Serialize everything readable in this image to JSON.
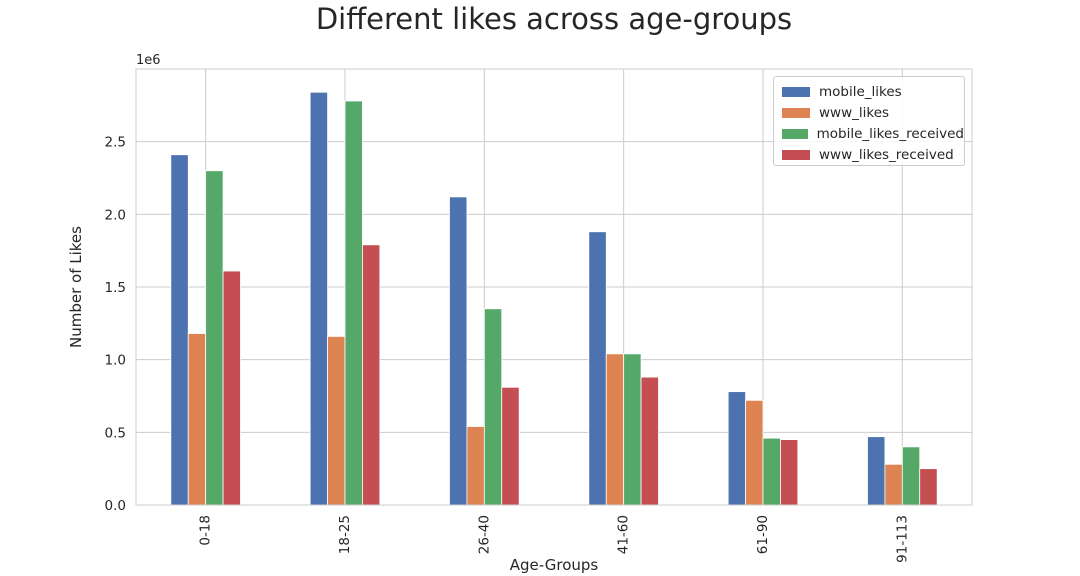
{
  "chart_data": {
    "type": "bar",
    "title": "Different likes across age-groups",
    "xlabel": "Age-Groups",
    "ylabel": "Number of Likes",
    "y_offset_text": "1e6",
    "categories": [
      "0-18",
      "18-25",
      "26-40",
      "41-60",
      "61-90",
      "91-113"
    ],
    "yticks": [
      0.0,
      0.5,
      1.0,
      1.5,
      2.0,
      2.5
    ],
    "ytick_labels": [
      "0.0",
      "0.5",
      "1.0",
      "1.5",
      "2.0",
      "2.5"
    ],
    "ylim": [
      0,
      3.0
    ],
    "units_multiplier": 1000000,
    "grid": true,
    "legend_position": "top-right",
    "series": [
      {
        "name": "mobile_likes",
        "color": "#4c72b0",
        "values": [
          2.41,
          2.84,
          2.12,
          1.88,
          0.78,
          0.47
        ]
      },
      {
        "name": "www_likes",
        "color": "#dd8452",
        "values": [
          1.18,
          1.16,
          0.54,
          1.04,
          0.72,
          0.28
        ]
      },
      {
        "name": "mobile_likes_received",
        "color": "#55a868",
        "values": [
          2.3,
          2.78,
          1.35,
          1.04,
          0.46,
          0.4
        ]
      },
      {
        "name": "www_likes_received",
        "color": "#c44e52",
        "values": [
          1.61,
          1.79,
          0.81,
          0.88,
          0.45,
          0.25
        ]
      }
    ]
  }
}
